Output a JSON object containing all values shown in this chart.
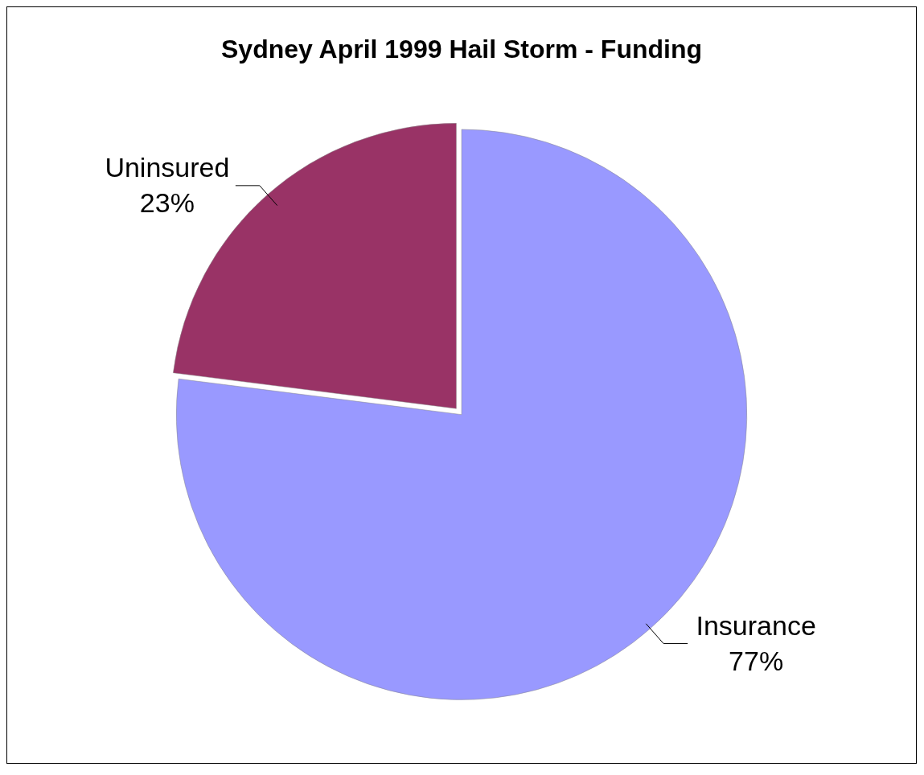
{
  "chart_data": {
    "type": "pie",
    "title": "Sydney April 1999 Hail Storm - Funding",
    "categories": [
      "Insurance",
      "Uninsured"
    ],
    "values": [
      77,
      23
    ],
    "value_labels": [
      "77%",
      "23%"
    ],
    "colors": [
      "#9999ff",
      "#993366"
    ],
    "legend": false
  }
}
